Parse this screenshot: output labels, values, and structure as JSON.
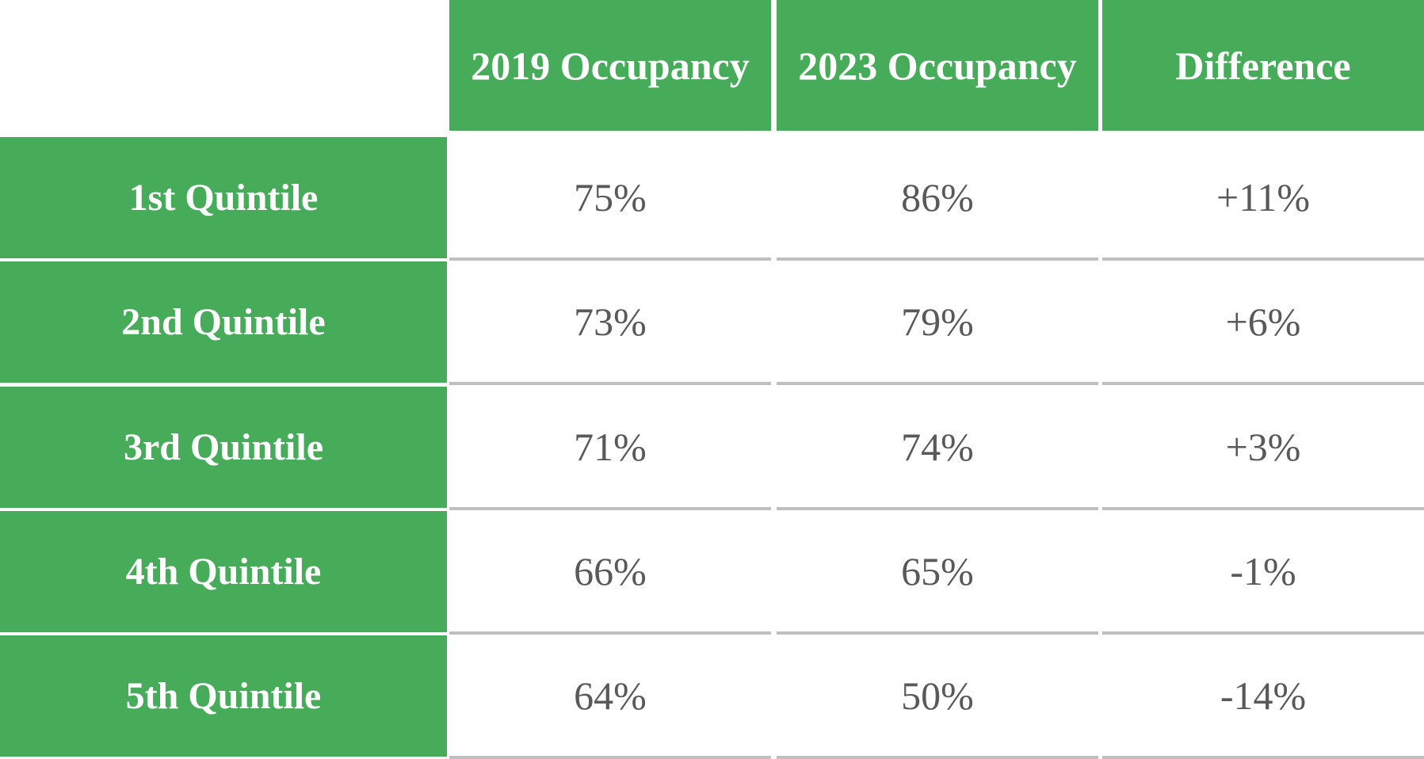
{
  "table": {
    "columns": [
      "2019 Occupancy",
      "2023 Occupancy",
      "Difference"
    ],
    "rows": [
      [
        "1st Quintile",
        "75%",
        "86%",
        "+11%"
      ],
      [
        "2nd Quintile",
        "73%",
        "79%",
        "+6%"
      ],
      [
        "3rd Quintile",
        "71%",
        "74%",
        "+3%"
      ],
      [
        "4th Quintile",
        "66%",
        "65%",
        "-1%"
      ],
      [
        "5th Quintile",
        "64%",
        "50%",
        "-14%"
      ]
    ]
  }
}
